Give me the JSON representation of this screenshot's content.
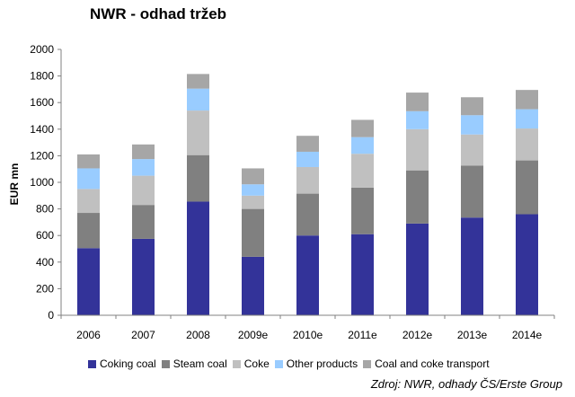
{
  "chart_data": {
    "type": "bar",
    "stacked": true,
    "title": "NWR - odhad tržeb",
    "xlabel": "",
    "ylabel": "EUR mn",
    "ylim": [
      0,
      2000
    ],
    "yticks": [
      0,
      200,
      400,
      600,
      800,
      1000,
      1200,
      1400,
      1600,
      1800,
      2000
    ],
    "grid": false,
    "legend_position": "bottom",
    "categories": [
      "2006",
      "2007",
      "2008",
      "2009e",
      "2010e",
      "2011e",
      "2012e",
      "2013e",
      "2014e"
    ],
    "series": [
      {
        "name": "Coking coal",
        "color": "#333399",
        "values": [
          505,
          575,
          855,
          440,
          600,
          610,
          690,
          735,
          760
        ]
      },
      {
        "name": "Steam coal",
        "color": "#808080",
        "values": [
          265,
          255,
          350,
          360,
          315,
          350,
          400,
          390,
          405
        ]
      },
      {
        "name": "Coke",
        "color": "#c0c0c0",
        "values": [
          180,
          220,
          335,
          100,
          200,
          255,
          310,
          235,
          240
        ]
      },
      {
        "name": "Other products",
        "color": "#99ccff",
        "values": [
          155,
          125,
          165,
          85,
          115,
          125,
          135,
          145,
          145
        ]
      },
      {
        "name": "Coal and coke transport",
        "color": "#a6a6a6",
        "values": [
          105,
          110,
          110,
          120,
          120,
          130,
          140,
          135,
          145
        ]
      }
    ],
    "source": "Zdroj: NWR, odhady ČS/Erste Group"
  }
}
